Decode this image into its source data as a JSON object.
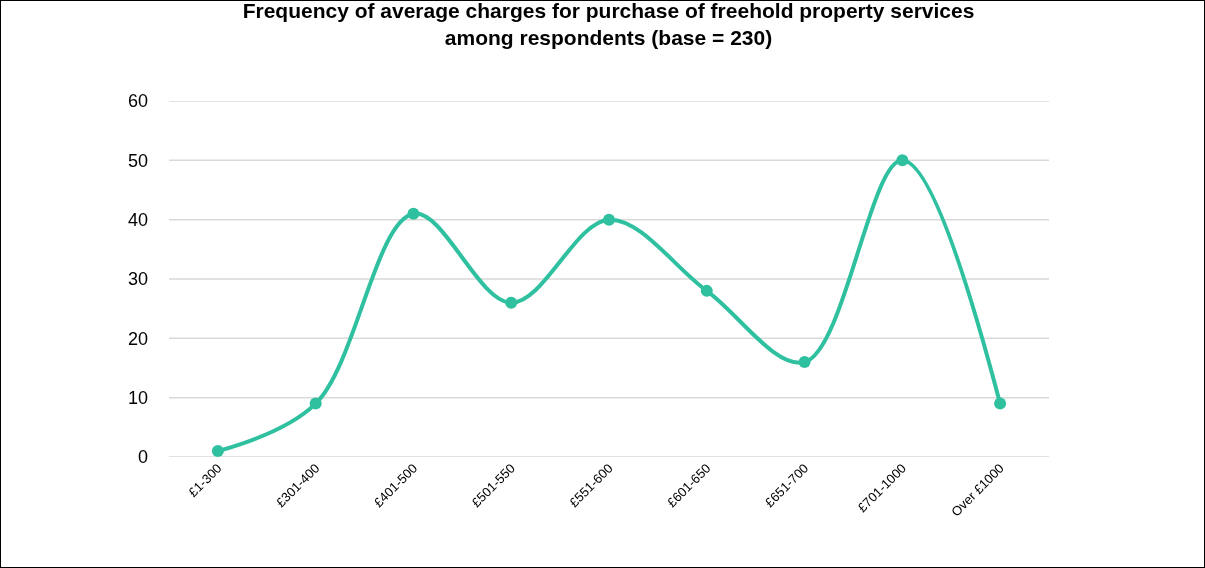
{
  "chart_data": {
    "type": "line",
    "title": "Frequency of average charges for purchase of freehold property services\namong respondents (base = 230)",
    "categories": [
      "£1-300",
      "£301-400",
      "£401-500",
      "£501-550",
      "£551-600",
      "£601-650",
      "£651-700",
      "£701-1000",
      "Over £1000"
    ],
    "series": [
      {
        "color": "#2fc0a0",
        "values": [
          1,
          9,
          41,
          26,
          40,
          28,
          16,
          50,
          9
        ]
      }
    ],
    "ylim": [
      0,
      60
    ],
    "yticks": [
      0,
      10,
      20,
      30,
      40,
      50,
      60
    ],
    "grid": "y",
    "marker": "circle",
    "line_style": "solid"
  }
}
